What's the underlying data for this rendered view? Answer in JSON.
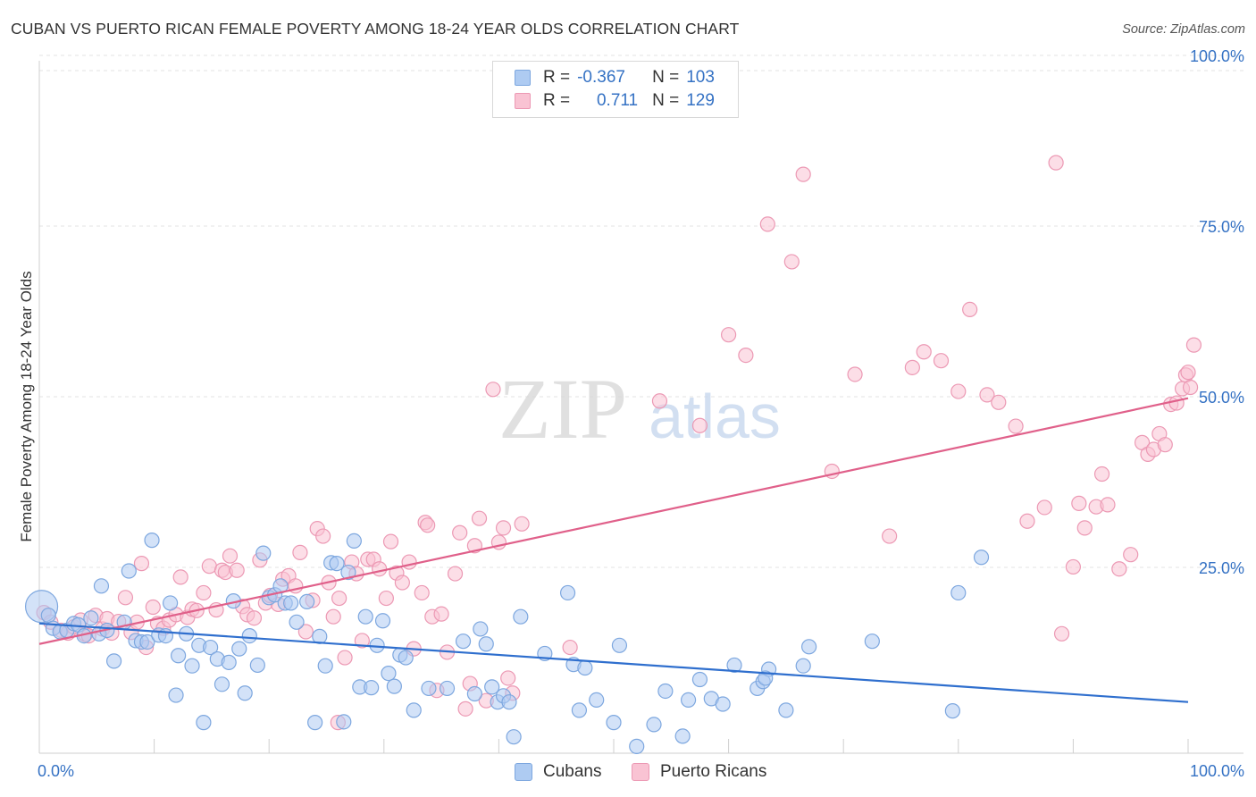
{
  "header": {
    "title": "CUBAN VS PUERTO RICAN FEMALE POVERTY AMONG 18-24 YEAR OLDS CORRELATION CHART",
    "source": "Source: ZipAtlas.com"
  },
  "watermark": {
    "zip": "ZIP",
    "atlas": "atlas"
  },
  "legend": {
    "cubans": {
      "r_label": "R =",
      "r_value": "-0.367",
      "n_label": "N =",
      "n_value": "103"
    },
    "puerto_ricans": {
      "r_label": "R =",
      "r_value": "0.711",
      "n_label": "N =",
      "n_value": "129"
    }
  },
  "bottom_legend": {
    "cubans": "Cubans",
    "puerto_ricans": "Puerto Ricans"
  },
  "axes": {
    "ylabel": "Female Poverty Among 18-24 Year Olds",
    "x_min_label": "0.0%",
    "x_max_label": "100.0%",
    "y_ticks": [
      "100.0%",
      "75.0%",
      "50.0%",
      "25.0%"
    ]
  },
  "colors": {
    "cubans_fill": "#aecbf2",
    "cubans_stroke": "#7da7df",
    "cubans_line": "#2f6fce",
    "pr_fill": "#f9c3d3",
    "pr_stroke": "#ec99b4",
    "pr_line": "#e0608a",
    "tick_label": "#3572c4",
    "grid": "#e3e3e3"
  },
  "chart_data": {
    "type": "scatter",
    "xlim": [
      0,
      100
    ],
    "ylim": [
      0,
      100
    ],
    "y_ticks": [
      25,
      50,
      75,
      100
    ],
    "grid": "horizontal dashed",
    "legend_position": "top-center",
    "series": [
      {
        "name": "Cubans",
        "regression": {
          "x": [
            0,
            100
          ],
          "y": [
            19,
            7.5
          ]
        },
        "points": [
          [
            0.2,
            21.5
          ],
          [
            0.8,
            20.2
          ],
          [
            1.2,
            18.3
          ],
          [
            1.8,
            17.8
          ],
          [
            2.4,
            18.0
          ],
          [
            3.0,
            19.0
          ],
          [
            3.4,
            18.8
          ],
          [
            3.9,
            17.2
          ],
          [
            4.5,
            19.8
          ],
          [
            5.2,
            17.5
          ],
          [
            5.4,
            24.5
          ],
          [
            5.9,
            18.0
          ],
          [
            6.5,
            13.5
          ],
          [
            7.4,
            19.2
          ],
          [
            7.8,
            26.7
          ],
          [
            8.4,
            16.5
          ],
          [
            8.9,
            16.3
          ],
          [
            9.4,
            16.3
          ],
          [
            9.8,
            31.2
          ],
          [
            10.4,
            17.3
          ],
          [
            11.0,
            17.2
          ],
          [
            11.4,
            22.0
          ],
          [
            11.9,
            8.5
          ],
          [
            12.1,
            14.3
          ],
          [
            12.8,
            17.5
          ],
          [
            13.3,
            12.8
          ],
          [
            13.9,
            15.8
          ],
          [
            14.3,
            4.5
          ],
          [
            14.9,
            15.5
          ],
          [
            15.5,
            13.8
          ],
          [
            15.9,
            10.1
          ],
          [
            16.5,
            13.3
          ],
          [
            16.9,
            22.3
          ],
          [
            17.4,
            15.3
          ],
          [
            17.9,
            8.8
          ],
          [
            18.3,
            17.2
          ],
          [
            19.0,
            12.9
          ],
          [
            19.5,
            29.3
          ],
          [
            20.0,
            22.8
          ],
          [
            20.5,
            23.2
          ],
          [
            21.0,
            24.5
          ],
          [
            21.4,
            22.0
          ],
          [
            21.9,
            22.0
          ],
          [
            22.4,
            19.2
          ],
          [
            23.3,
            22.2
          ],
          [
            24.0,
            4.5
          ],
          [
            24.4,
            17.1
          ],
          [
            24.9,
            12.8
          ],
          [
            25.4,
            27.9
          ],
          [
            25.9,
            27.8
          ],
          [
            26.5,
            4.6
          ],
          [
            26.9,
            26.5
          ],
          [
            27.4,
            31.1
          ],
          [
            27.9,
            9.7
          ],
          [
            28.4,
            20.0
          ],
          [
            28.9,
            9.6
          ],
          [
            29.4,
            15.8
          ],
          [
            29.9,
            19.4
          ],
          [
            30.4,
            11.7
          ],
          [
            30.9,
            9.8
          ],
          [
            31.4,
            14.4
          ],
          [
            31.9,
            14.0
          ],
          [
            32.6,
            6.3
          ],
          [
            33.9,
            9.5
          ],
          [
            35.5,
            9.5
          ],
          [
            36.9,
            16.4
          ],
          [
            37.9,
            8.7
          ],
          [
            38.4,
            18.2
          ],
          [
            38.9,
            16.0
          ],
          [
            39.4,
            9.7
          ],
          [
            39.9,
            7.5
          ],
          [
            40.4,
            8.4
          ],
          [
            40.9,
            7.5
          ],
          [
            41.3,
            2.4
          ],
          [
            41.9,
            20.0
          ],
          [
            44.0,
            14.6
          ],
          [
            46.0,
            23.5
          ],
          [
            46.5,
            13.0
          ],
          [
            47.0,
            6.3
          ],
          [
            47.5,
            12.5
          ],
          [
            48.5,
            7.8
          ],
          [
            50.0,
            4.5
          ],
          [
            50.5,
            15.8
          ],
          [
            52.0,
            1.0
          ],
          [
            53.5,
            4.2
          ],
          [
            54.5,
            9.1
          ],
          [
            56.0,
            2.5
          ],
          [
            56.5,
            7.8
          ],
          [
            57.5,
            10.8
          ],
          [
            58.5,
            8.0
          ],
          [
            59.5,
            7.2
          ],
          [
            60.5,
            12.9
          ],
          [
            62.5,
            9.5
          ],
          [
            63.0,
            10.5
          ],
          [
            63.5,
            12.3
          ],
          [
            65.0,
            6.3
          ],
          [
            66.5,
            12.8
          ],
          [
            67.0,
            15.6
          ],
          [
            72.5,
            16.4
          ],
          [
            79.5,
            6.2
          ],
          [
            80.0,
            23.5
          ],
          [
            82.0,
            28.7
          ],
          [
            63.2,
            11.0
          ]
        ]
      },
      {
        "name": "Puerto Ricans",
        "regression": {
          "x": [
            0,
            100
          ],
          "y": [
            16,
            52
          ]
        },
        "points": [
          [
            0.4,
            20.6
          ],
          [
            1.0,
            19.2
          ],
          [
            1.9,
            18.0
          ],
          [
            2.5,
            17.6
          ],
          [
            3.0,
            18.5
          ],
          [
            3.6,
            19.5
          ],
          [
            4.0,
            17.4
          ],
          [
            4.3,
            17.2
          ],
          [
            4.9,
            20.2
          ],
          [
            5.5,
            18.2
          ],
          [
            5.9,
            19.7
          ],
          [
            6.3,
            17.6
          ],
          [
            6.9,
            19.3
          ],
          [
            7.5,
            22.8
          ],
          [
            8.0,
            17.7
          ],
          [
            8.5,
            19.2
          ],
          [
            8.9,
            27.8
          ],
          [
            9.3,
            15.5
          ],
          [
            9.9,
            21.4
          ],
          [
            10.3,
            19.0
          ],
          [
            10.8,
            18.3
          ],
          [
            11.3,
            19.5
          ],
          [
            11.9,
            20.3
          ],
          [
            12.3,
            25.8
          ],
          [
            12.9,
            19.9
          ],
          [
            13.3,
            21.1
          ],
          [
            13.7,
            20.9
          ],
          [
            14.3,
            23.5
          ],
          [
            14.8,
            27.4
          ],
          [
            15.4,
            21.0
          ],
          [
            15.9,
            26.8
          ],
          [
            16.2,
            26.5
          ],
          [
            16.6,
            28.9
          ],
          [
            17.2,
            26.8
          ],
          [
            17.7,
            21.5
          ],
          [
            18.1,
            20.3
          ],
          [
            18.7,
            19.8
          ],
          [
            19.2,
            28.3
          ],
          [
            19.7,
            22.0
          ],
          [
            20.1,
            23.1
          ],
          [
            20.8,
            21.8
          ],
          [
            21.2,
            25.5
          ],
          [
            21.7,
            26.0
          ],
          [
            22.3,
            24.5
          ],
          [
            22.7,
            29.4
          ],
          [
            23.2,
            17.8
          ],
          [
            23.8,
            22.4
          ],
          [
            24.2,
            32.9
          ],
          [
            24.7,
            31.8
          ],
          [
            25.2,
            25.0
          ],
          [
            25.6,
            20.0
          ],
          [
            26.1,
            22.7
          ],
          [
            26.6,
            14.0
          ],
          [
            27.2,
            28.0
          ],
          [
            27.6,
            26.3
          ],
          [
            28.1,
            16.5
          ],
          [
            28.6,
            28.4
          ],
          [
            29.1,
            28.4
          ],
          [
            29.6,
            27.0
          ],
          [
            30.2,
            22.7
          ],
          [
            30.6,
            31.0
          ],
          [
            31.1,
            26.4
          ],
          [
            31.6,
            25.0
          ],
          [
            32.2,
            28.0
          ],
          [
            32.6,
            15.3
          ],
          [
            33.3,
            23.5
          ],
          [
            33.6,
            33.8
          ],
          [
            33.8,
            33.4
          ],
          [
            34.2,
            20.0
          ],
          [
            34.6,
            9.2
          ],
          [
            35.0,
            20.4
          ],
          [
            35.5,
            14.8
          ],
          [
            36.2,
            26.3
          ],
          [
            36.6,
            32.3
          ],
          [
            37.1,
            6.5
          ],
          [
            37.5,
            10.2
          ],
          [
            37.9,
            30.4
          ],
          [
            38.3,
            34.4
          ],
          [
            38.9,
            7.7
          ],
          [
            39.5,
            53.3
          ],
          [
            40.0,
            30.9
          ],
          [
            40.4,
            33.0
          ],
          [
            41.2,
            8.8
          ],
          [
            42.0,
            33.6
          ],
          [
            46.2,
            15.5
          ],
          [
            54.0,
            51.6
          ],
          [
            57.5,
            48.0
          ],
          [
            60.0,
            61.3
          ],
          [
            61.5,
            58.3
          ],
          [
            63.4,
            77.5
          ],
          [
            65.5,
            72.0
          ],
          [
            66.5,
            84.8
          ],
          [
            69.0,
            41.3
          ],
          [
            71.0,
            55.5
          ],
          [
            74.0,
            31.8
          ],
          [
            76.0,
            56.5
          ],
          [
            77.0,
            58.8
          ],
          [
            78.5,
            57.5
          ],
          [
            80.0,
            53.0
          ],
          [
            81.0,
            65.0
          ],
          [
            82.5,
            52.5
          ],
          [
            83.5,
            51.4
          ],
          [
            85.0,
            47.9
          ],
          [
            86.0,
            34.0
          ],
          [
            87.5,
            36.0
          ],
          [
            88.5,
            86.5
          ],
          [
            89.0,
            17.5
          ],
          [
            90.0,
            27.3
          ],
          [
            90.5,
            36.6
          ],
          [
            91.0,
            33.0
          ],
          [
            92.0,
            36.1
          ],
          [
            92.5,
            40.9
          ],
          [
            93.0,
            36.4
          ],
          [
            94.0,
            27.0
          ],
          [
            95.0,
            29.1
          ],
          [
            96.0,
            45.5
          ],
          [
            96.5,
            43.8
          ],
          [
            97.0,
            44.5
          ],
          [
            97.5,
            46.8
          ],
          [
            98.0,
            45.2
          ],
          [
            98.5,
            51.1
          ],
          [
            99.0,
            51.3
          ],
          [
            99.5,
            53.4
          ],
          [
            99.8,
            55.4
          ],
          [
            100.0,
            55.8
          ],
          [
            100.2,
            53.6
          ],
          [
            100.5,
            59.8
          ],
          [
            26.0,
            4.5
          ],
          [
            40.8,
            11.0
          ]
        ]
      }
    ]
  }
}
